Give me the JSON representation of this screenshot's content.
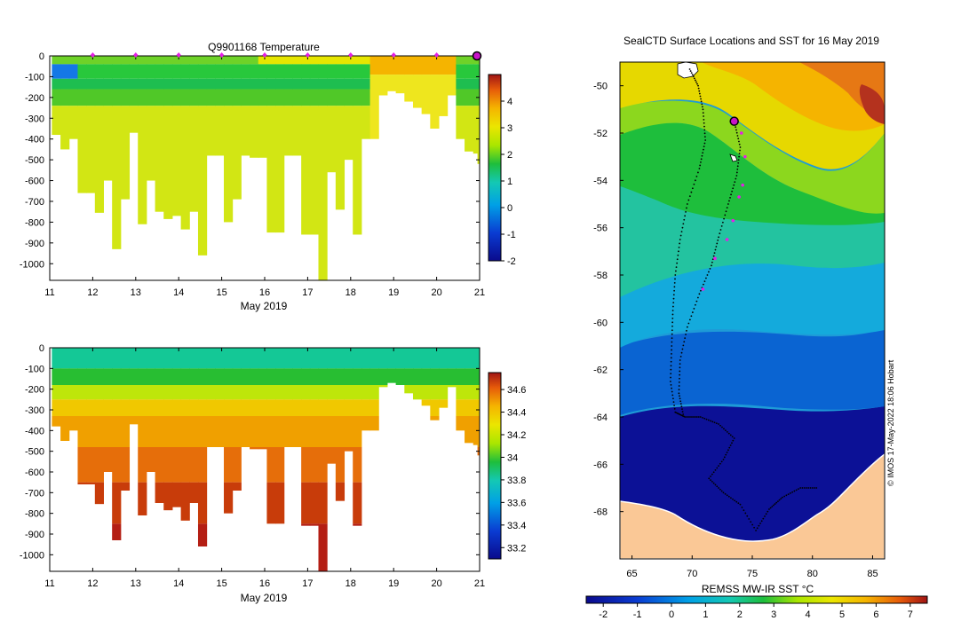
{
  "chart_data": [
    {
      "type": "heatmap",
      "name": "temperature-section",
      "title": "Q9901168  Temperature",
      "xlabel": "May 2019",
      "ylabel": "",
      "xlim": [
        11,
        21
      ],
      "ylim": [
        -1080,
        0
      ],
      "xticks": [
        11,
        12,
        13,
        14,
        15,
        16,
        17,
        18,
        19,
        20,
        21
      ],
      "yticks": [
        0,
        -100,
        -200,
        -300,
        -400,
        -500,
        -600,
        -700,
        -800,
        -900,
        -1000
      ],
      "colorbar": {
        "min": -2,
        "max": 5,
        "ticks": [
          -2,
          -1,
          0,
          1,
          2,
          3,
          4
        ]
      },
      "profile_markers_day": [
        12,
        13,
        14,
        15,
        16,
        17,
        18,
        19,
        20
      ],
      "current_marker_day": 21
    },
    {
      "type": "heatmap",
      "name": "salinity-section",
      "title": "",
      "xlabel": "May 2019",
      "ylabel": "",
      "xlim": [
        11,
        21
      ],
      "ylim": [
        -1080,
        0
      ],
      "xticks": [
        11,
        12,
        13,
        14,
        15,
        16,
        17,
        18,
        19,
        20,
        21
      ],
      "yticks": [
        0,
        -100,
        -200,
        -300,
        -400,
        -500,
        -600,
        -700,
        -800,
        -900,
        -1000
      ],
      "colorbar": {
        "min": 33.1,
        "max": 34.75,
        "ticks": [
          33.2,
          33.4,
          33.6,
          33.8,
          34,
          34.2,
          34.4,
          34.6
        ]
      }
    },
    {
      "type": "heatmap",
      "name": "sst-map",
      "title": "SealCTD Surface Locations and SST for 16 May 2019",
      "xlabel": "",
      "ylabel": "",
      "xlim": [
        64,
        86
      ],
      "ylim": [
        -70,
        -49
      ],
      "xticks": [
        65,
        70,
        75,
        80,
        85
      ],
      "yticks": [
        -50,
        -52,
        -54,
        -56,
        -58,
        -60,
        -62,
        -64,
        -66,
        -68
      ],
      "colorbar": {
        "label": "REMSS MW-IR SST °C",
        "min": -2.5,
        "max": 7.5,
        "ticks": [
          -2,
          -1,
          0,
          1,
          2,
          3,
          4,
          5,
          6,
          7
        ]
      },
      "current_location": {
        "lon": 73.5,
        "lat": -51.5
      },
      "credit": "© IMOS 17-May-2022 18:06 Hobart"
    }
  ],
  "profiles": [
    {
      "day": 11.05,
      "depth": 380
    },
    {
      "day": 11.25,
      "depth": 450
    },
    {
      "day": 11.45,
      "depth": 400
    },
    {
      "day": 11.65,
      "depth": 660
    },
    {
      "day": 11.85,
      "depth": 660
    },
    {
      "day": 12.05,
      "depth": 755
    },
    {
      "day": 12.25,
      "depth": 600
    },
    {
      "day": 12.45,
      "depth": 930
    },
    {
      "day": 12.65,
      "depth": 690
    },
    {
      "day": 12.85,
      "depth": 370
    },
    {
      "day": 13.05,
      "depth": 810
    },
    {
      "day": 13.25,
      "depth": 600
    },
    {
      "day": 13.45,
      "depth": 750
    },
    {
      "day": 13.65,
      "depth": 785
    },
    {
      "day": 13.85,
      "depth": 770
    },
    {
      "day": 14.05,
      "depth": 835
    },
    {
      "day": 14.25,
      "depth": 750
    },
    {
      "day": 14.45,
      "depth": 960
    },
    {
      "day": 14.65,
      "depth": 480
    },
    {
      "day": 14.85,
      "depth": 480
    },
    {
      "day": 15.05,
      "depth": 800
    },
    {
      "day": 15.25,
      "depth": 690
    },
    {
      "day": 15.45,
      "depth": 480
    },
    {
      "day": 15.65,
      "depth": 490
    },
    {
      "day": 15.85,
      "depth": 490
    },
    {
      "day": 16.05,
      "depth": 850
    },
    {
      "day": 16.25,
      "depth": 850
    },
    {
      "day": 16.45,
      "depth": 480
    },
    {
      "day": 16.65,
      "depth": 480
    },
    {
      "day": 16.85,
      "depth": 860
    },
    {
      "day": 17.05,
      "depth": 860
    },
    {
      "day": 17.25,
      "depth": 1080
    },
    {
      "day": 17.45,
      "depth": 560
    },
    {
      "day": 17.65,
      "depth": 740
    },
    {
      "day": 17.85,
      "depth": 500
    },
    {
      "day": 18.05,
      "depth": 860
    },
    {
      "day": 18.25,
      "depth": 400
    },
    {
      "day": 18.45,
      "depth": 400
    },
    {
      "day": 18.65,
      "depth": 190
    },
    {
      "day": 18.85,
      "depth": 170
    },
    {
      "day": 19.05,
      "depth": 180
    },
    {
      "day": 19.25,
      "depth": 220
    },
    {
      "day": 19.45,
      "depth": 250
    },
    {
      "day": 19.65,
      "depth": 280
    },
    {
      "day": 19.85,
      "depth": 350
    },
    {
      "day": 20.05,
      "depth": 290
    },
    {
      "day": 20.25,
      "depth": 190
    },
    {
      "day": 20.45,
      "depth": 400
    },
    {
      "day": 20.65,
      "depth": 460
    },
    {
      "day": 20.85,
      "depth": 470
    },
    {
      "day": 20.95,
      "depth": 520
    }
  ],
  "track_lon_lat": [
    [
      69.8,
      -49.3
    ],
    [
      70.5,
      -50.0
    ],
    [
      70.9,
      -51.0
    ],
    [
      71.1,
      -52.3
    ],
    [
      70.6,
      -53.5
    ],
    [
      69.6,
      -55.0
    ],
    [
      69.0,
      -56.5
    ],
    [
      68.6,
      -58.0
    ],
    [
      68.4,
      -59.5
    ],
    [
      68.3,
      -61.0
    ],
    [
      68.2,
      -62.5
    ],
    [
      68.6,
      -63.8
    ],
    [
      69.4,
      -64.0
    ],
    [
      70.7,
      -64.0
    ],
    [
      72.2,
      -64.3
    ],
    [
      73.5,
      -64.9
    ],
    [
      72.6,
      -65.8
    ],
    [
      71.4,
      -66.6
    ],
    [
      72.6,
      -67.2
    ],
    [
      74.0,
      -67.7
    ],
    [
      75.3,
      -68.8
    ],
    [
      76.4,
      -67.9
    ],
    [
      77.5,
      -67.4
    ],
    [
      79.0,
      -67.0
    ],
    [
      80.5,
      -67.0
    ]
  ],
  "track2_lon_lat": [
    [
      73.5,
      -51.5
    ],
    [
      74.0,
      -52.6
    ],
    [
      73.7,
      -53.8
    ],
    [
      73.0,
      -55.0
    ],
    [
      72.2,
      -56.4
    ],
    [
      71.6,
      -57.6
    ],
    [
      70.6,
      -58.8
    ],
    [
      69.6,
      -60.2
    ],
    [
      69.0,
      -61.6
    ],
    [
      68.9,
      -63.0
    ],
    [
      69.3,
      -64.0
    ]
  ],
  "recent_positions_lon_lat": [
    [
      74.1,
      -52.0
    ],
    [
      74.4,
      -53.0
    ],
    [
      74.2,
      -54.2
    ],
    [
      73.9,
      -54.7
    ],
    [
      73.4,
      -55.7
    ],
    [
      72.9,
      -56.5
    ],
    [
      71.9,
      -57.3
    ],
    [
      70.9,
      -58.6
    ]
  ]
}
